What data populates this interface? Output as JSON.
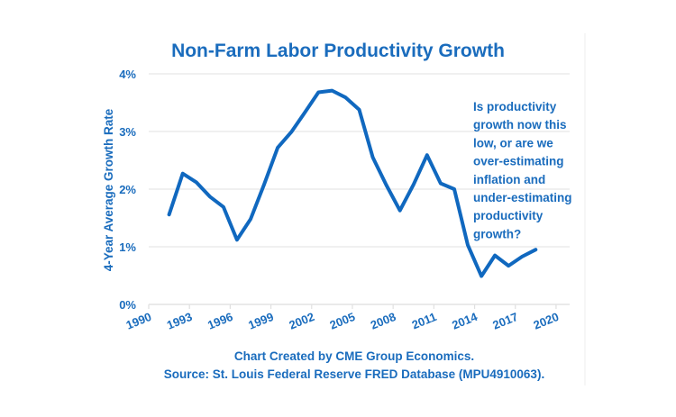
{
  "chart_data": {
    "type": "line",
    "title": "Non-Farm Labor Productivity Growth",
    "xlabel": "",
    "ylabel": "4-Year Average Growth Rate",
    "xlim": [
      1990,
      2021
    ],
    "ylim": [
      0,
      4
    ],
    "x_ticks": [
      1990,
      1993,
      1996,
      1999,
      2002,
      2005,
      2008,
      2011,
      2014,
      2017,
      2020
    ],
    "x_tick_labels": [
      "1990",
      "1993",
      "1996",
      "1999",
      "2002",
      "2005",
      "2008",
      "2011",
      "2014",
      "2017",
      "2020"
    ],
    "y_ticks": [
      0,
      1,
      2,
      3,
      4
    ],
    "y_tick_labels": [
      "0%",
      "1%",
      "2%",
      "3%",
      "4%"
    ],
    "grid": "horizontal",
    "legend": "none",
    "series": [
      {
        "name": "4-Year Average Growth Rate",
        "color": "#1068bf",
        "x": [
          1991.5,
          1992.5,
          1993.5,
          1994.5,
          1995.5,
          1996.5,
          1997.5,
          1998.5,
          1999.5,
          2000.5,
          2001.5,
          2002.5,
          2003.5,
          2004.5,
          2005.5,
          2006.5,
          2007.5,
          2008.5,
          2009.5,
          2010.5,
          2011.5,
          2012.5,
          2013.5,
          2014.5,
          2015.5,
          2016.5,
          2017.5,
          2018.5
        ],
        "values": [
          1.56,
          2.27,
          2.12,
          1.87,
          1.69,
          1.12,
          1.48,
          2.08,
          2.72,
          2.99,
          3.33,
          3.68,
          3.71,
          3.59,
          3.38,
          2.55,
          2.07,
          1.63,
          2.08,
          2.59,
          2.1,
          2.0,
          1.03,
          0.49,
          0.85,
          0.67,
          0.83,
          0.95
        ]
      }
    ],
    "annotations": [
      {
        "lines": [
          "Is productivity",
          "growth now this",
          "low, or are we",
          "over-estimating",
          "inflation and",
          "under-estimating",
          "productivity",
          "growth?"
        ],
        "placement": "right"
      }
    ],
    "footer": [
      "Chart Created by CME Group Economics.",
      "Source: St. Louis Federal Reserve FRED Database (MPU4910063)."
    ]
  }
}
